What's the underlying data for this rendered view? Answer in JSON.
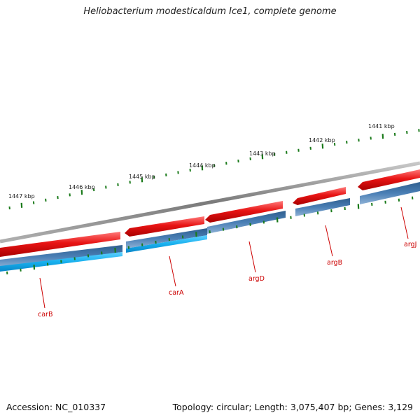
{
  "title": "Heliobacterium modesticaldum Ice1, complete genome",
  "footer": {
    "accession": "Accession: NC_010337",
    "topology": "Topology: circular; Length: 3,075,407 bp; Genes: 3,129"
  },
  "scale_labels": [
    "1447 kbp",
    "1446 kbp",
    "1445 kbp",
    "1444 kbp",
    "1443 kbp",
    "1442 kbp",
    "1441 kbp"
  ],
  "genes": [
    "carB",
    "carA",
    "argD",
    "argB",
    "argJ"
  ],
  "colors": {
    "backbone": "#8a8a8a",
    "gene_red": "#e01010",
    "cds_blue": "#4a7fb5",
    "cds_cyan": "#22b8f0",
    "tick_green": "#1a7a1a",
    "gene_label": "#cc0000"
  }
}
